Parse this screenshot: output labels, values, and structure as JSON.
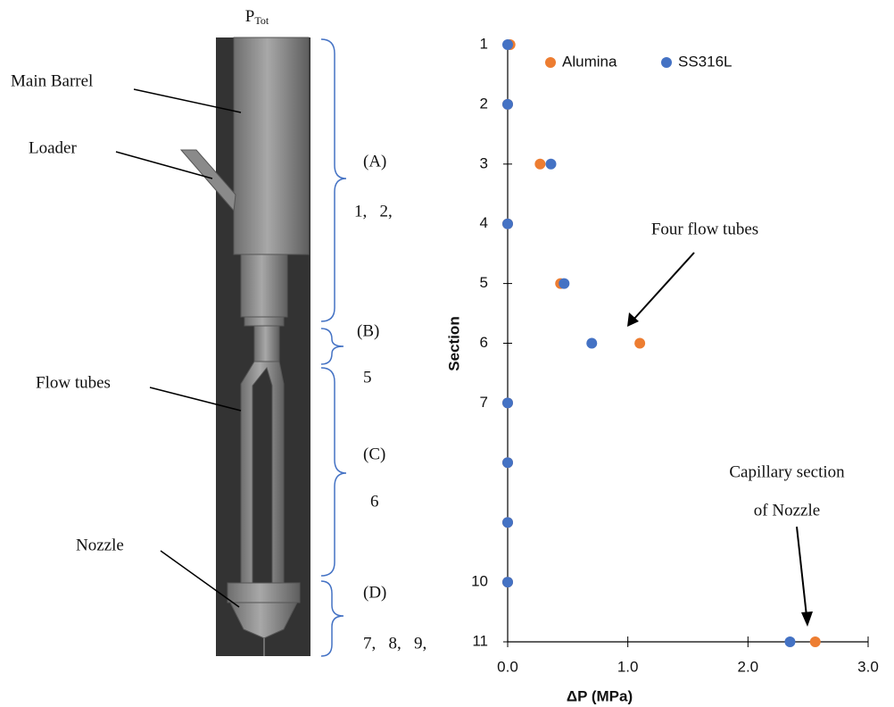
{
  "diagram": {
    "pressure_label": {
      "main": "P",
      "sub": "Tot"
    },
    "parts": [
      "Main Barrel",
      "Loader",
      "Flow tubes",
      "Nozzle"
    ],
    "regions": [
      {
        "label": "(A)",
        "sections": "1,   2,"
      },
      {
        "label": "(B)",
        "sections": "5"
      },
      {
        "label": "(C)",
        "sections": "6"
      },
      {
        "label": "(D)",
        "sections": "7,   8,   9,"
      }
    ]
  },
  "chart_data": {
    "type": "scatter",
    "x_label": "ΔP (MPa)",
    "y_label": "Section",
    "series": [
      {
        "name": "Alumina",
        "color": "#ed7d31",
        "x": [
          0.02,
          0,
          0.27,
          0,
          0.44,
          1.1,
          0,
          0,
          0,
          0,
          2.56
        ],
        "values": [
          1,
          2,
          3,
          4,
          5,
          6,
          7,
          8,
          9,
          10,
          11
        ]
      },
      {
        "name": "SS316L",
        "color": "#4472c4",
        "x": [
          0,
          0,
          0.36,
          0,
          0.47,
          0.7,
          0,
          0,
          0,
          0,
          2.35
        ],
        "values": [
          1,
          2,
          3,
          4,
          5,
          6,
          7,
          8,
          9,
          10,
          11
        ]
      }
    ],
    "xlim": [
      0,
      3
    ],
    "xticks": [
      {
        "value": 0,
        "label": "0.0"
      },
      {
        "value": 1,
        "label": "1.0"
      },
      {
        "value": 2,
        "label": "2.0"
      },
      {
        "value": 3,
        "label": "3.0"
      }
    ],
    "ylim": [
      1,
      11
    ],
    "y_inverted": true,
    "yticks": [
      1,
      2,
      3,
      4,
      5,
      6,
      7,
      10,
      11
    ],
    "legend": "top",
    "annotations": [
      "Four flow tubes",
      "Capillary section",
      "of Nozzle"
    ]
  }
}
